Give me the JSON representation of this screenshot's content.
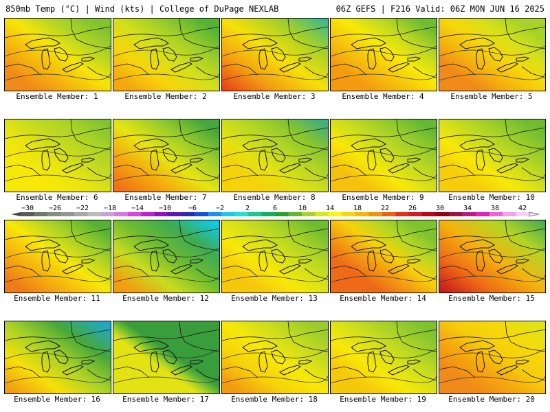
{
  "header": {
    "left": "850mb Temp (°C) | Wind (kts) | College of DuPage NEXLAB",
    "right": "06Z GEFS | F216 Valid: 06Z MON JUN 16 2025"
  },
  "caption_prefix": "Ensemble Member: ",
  "members": [
    {
      "number": "1",
      "fill": [
        "#f08a18",
        "#f5b70c",
        "#f6e508",
        "#b3d526",
        "#80c32f"
      ],
      "ctr": [
        0.15,
        0.9
      ]
    },
    {
      "number": "2",
      "fill": [
        "#f5a70e",
        "#f6d50a",
        "#d4e01a",
        "#9bcd2a",
        "#56b234"
      ],
      "ctr": [
        0.1,
        0.9
      ]
    },
    {
      "number": "3",
      "fill": [
        "#e83a17",
        "#f39c11",
        "#f7e108",
        "#a4d028",
        "#2fb59a"
      ],
      "ctr": [
        0.0,
        1.0
      ]
    },
    {
      "number": "4",
      "fill": [
        "#f49b10",
        "#f6c40c",
        "#f8ea07",
        "#bcd822",
        "#6fbc30"
      ],
      "ctr": [
        0.2,
        0.9
      ]
    },
    {
      "number": "5",
      "fill": [
        "#f08a18",
        "#f5b50d",
        "#f6d80a",
        "#d5e01a",
        "#a8d227"
      ],
      "ctr": [
        0.2,
        0.85
      ]
    },
    {
      "number": "6",
      "fill": [
        "#f8e808",
        "#e8e510",
        "#c5da20",
        "#a8d227",
        "#80c32f"
      ],
      "ctr": [
        0.25,
        0.95
      ]
    },
    {
      "number": "7",
      "fill": [
        "#f07016",
        "#f5a70e",
        "#e7e510",
        "#9bcd2a",
        "#46a83a"
      ],
      "ctr": [
        0.05,
        0.9
      ]
    },
    {
      "number": "8",
      "fill": [
        "#f6d20a",
        "#e3e213",
        "#b8d724",
        "#88c52e",
        "#3fb07a"
      ],
      "ctr": [
        0.2,
        0.95
      ]
    },
    {
      "number": "9",
      "fill": [
        "#f5c10c",
        "#f8e808",
        "#c9dc1e",
        "#9bcd2a",
        "#66b833"
      ],
      "ctr": [
        0.2,
        0.9
      ]
    },
    {
      "number": "10",
      "fill": [
        "#f6cc0b",
        "#f8e808",
        "#c9dc1e",
        "#9bcd2a",
        "#6fbc30"
      ],
      "ctr": [
        0.2,
        0.9
      ]
    },
    {
      "number": "11",
      "fill": [
        "#f07a17",
        "#f5b20d",
        "#f8e808",
        "#a8d227",
        "#56b234"
      ],
      "ctr": [
        0.1,
        0.9
      ]
    },
    {
      "number": "12",
      "fill": [
        "#f39c11",
        "#c8dc1e",
        "#6fbc30",
        "#3faa50",
        "#12c9e0"
      ],
      "ctr": [
        0.1,
        0.95
      ]
    },
    {
      "number": "13",
      "fill": [
        "#f6c80c",
        "#f8e808",
        "#d4e01a",
        "#a8d227",
        "#6fbc30"
      ],
      "ctr": [
        0.2,
        0.9
      ]
    },
    {
      "number": "14",
      "fill": [
        "#ee6a16",
        "#f39c11",
        "#f6d20a",
        "#b8d724",
        "#80c32f"
      ],
      "ctr": [
        0.25,
        0.85
      ]
    },
    {
      "number": "15",
      "fill": [
        "#c4101b",
        "#ef6a15",
        "#f5b20d",
        "#b3d526",
        "#3faa50"
      ],
      "ctr": [
        0.0,
        1.0
      ]
    },
    {
      "number": "16",
      "fill": [
        "#f39c11",
        "#f7e008",
        "#a8d227",
        "#46a83a",
        "#20a8c8"
      ],
      "ctr": [
        0.05,
        0.95
      ]
    },
    {
      "number": "17",
      "fill": [
        "#e3e213",
        "#a8d227",
        "#66b833",
        "#3a9d3c",
        "#3a9d3c"
      ],
      "ctr": [
        0.4,
        0.6
      ]
    },
    {
      "number": "18",
      "fill": [
        "#f39c11",
        "#f6d20a",
        "#f8e808",
        "#c9dc1e",
        "#9bcd2a"
      ],
      "ctr": [
        0.1,
        0.9
      ]
    },
    {
      "number": "19",
      "fill": [
        "#f6c80c",
        "#f8e808",
        "#d4e01a",
        "#a8d227",
        "#7fc22f"
      ],
      "ctr": [
        0.2,
        0.9
      ]
    },
    {
      "number": "20",
      "fill": [
        "#f08a18",
        "#f5a70e",
        "#f6cc0b",
        "#f6d80a",
        "#e3e213"
      ],
      "ctr": [
        0.2,
        0.9
      ]
    }
  ],
  "colorbar": {
    "colors": [
      "#5b5b5b",
      "#6d786d",
      "#7f917f",
      "#949494",
      "#a8a8a8",
      "#bbbbbb",
      "#c8a0d8",
      "#d878e0",
      "#e040e8",
      "#c020d0",
      "#9010c0",
      "#5a18b8",
      "#2a2ab8",
      "#1450e0",
      "#1e90f0",
      "#18c8f0",
      "#20e0d0",
      "#18c890",
      "#10b060",
      "#28a030",
      "#60b82c",
      "#a8d227",
      "#d8e81a",
      "#f8f808",
      "#f8d808",
      "#f8b808",
      "#f89008",
      "#f06010",
      "#e83018",
      "#d81820",
      "#c00018",
      "#900010",
      "#a01040",
      "#c01880",
      "#e020c0",
      "#f060e0",
      "#f8a0f0",
      "#f8d0f8"
    ],
    "labels": [
      "−30",
      "−26",
      "−22",
      "−18",
      "−14",
      "−10",
      "−6",
      "−2",
      "2",
      "6",
      "10",
      "14",
      "18",
      "22",
      "26",
      "30",
      "34",
      "38",
      "42"
    ]
  }
}
